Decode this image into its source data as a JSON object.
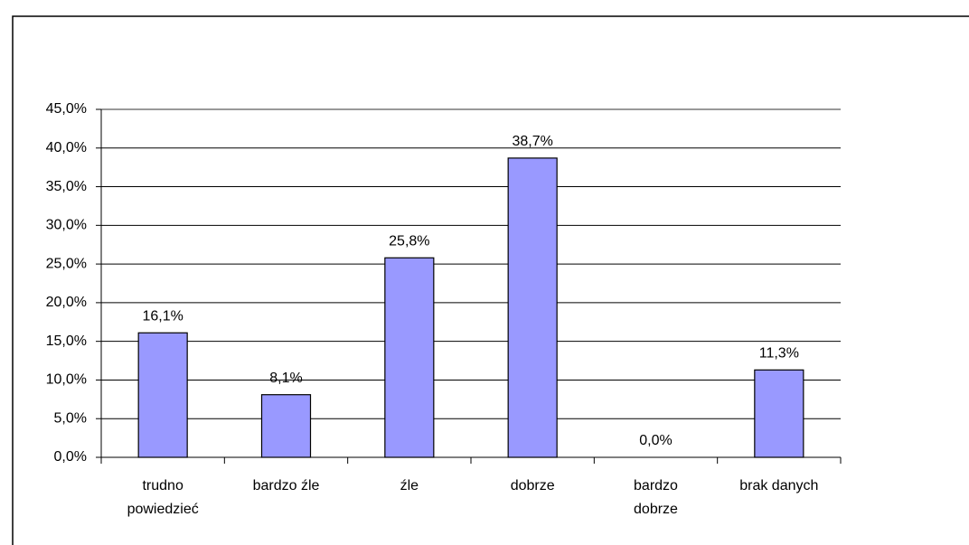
{
  "chart_data": {
    "type": "bar",
    "categories": [
      "trudno\npowiedzieć",
      "bardzo źle",
      "źle",
      "dobrze",
      "bardzo\ndobrze",
      "brak danych"
    ],
    "values": [
      16.1,
      8.1,
      25.8,
      38.7,
      0.0,
      11.3
    ],
    "value_labels": [
      "16,1%",
      "8,1%",
      "25,8%",
      "38,7%",
      "0,0%",
      "11,3%"
    ],
    "color": "#9999ff",
    "ylim": [
      0,
      45
    ],
    "yticks": [
      {
        "value": 0,
        "label": "0,0%"
      },
      {
        "value": 5,
        "label": "5,0%"
      },
      {
        "value": 10,
        "label": "10,0%"
      },
      {
        "value": 15,
        "label": "15,0%"
      },
      {
        "value": 20,
        "label": "20,0%"
      },
      {
        "value": 25,
        "label": "25,0%"
      },
      {
        "value": 30,
        "label": "30,0%"
      },
      {
        "value": 35,
        "label": "35,0%"
      },
      {
        "value": 40,
        "label": "40,0%"
      },
      {
        "value": 45,
        "label": "45,0%"
      }
    ],
    "grid": true
  }
}
